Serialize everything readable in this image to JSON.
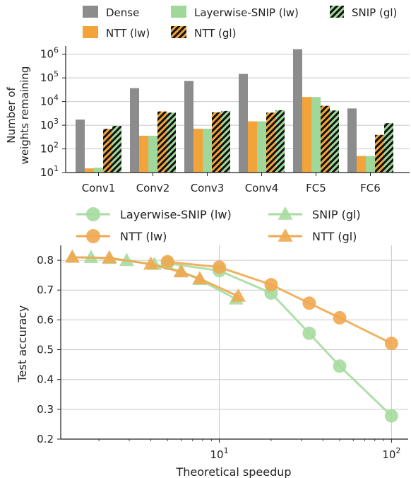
{
  "chart_data": [
    {
      "type": "bar",
      "ylabel_lines": [
        "Number of",
        "weights remaining"
      ],
      "yscale": "log",
      "ylim": [
        10,
        1000000
      ],
      "ytick_exponents": [
        "0",
        "1",
        "2",
        "3",
        "4",
        "5",
        "6"
      ],
      "ytick_base": "10",
      "visible_ytick_exponents": [
        1,
        2,
        3,
        4,
        5,
        6
      ],
      "categories": [
        "Conv1",
        "Conv2",
        "Conv3",
        "Conv4",
        "FC5",
        "FC6"
      ],
      "series": [
        {
          "name": "Dense",
          "color": "#8c8c8c",
          "hatch": false,
          "values": [
            1728,
            36864,
            73728,
            147456,
            1638400,
            5120
          ]
        },
        {
          "name": "NTT (lw)",
          "color": "#f2a43a",
          "hatch": false,
          "values": [
            15,
            360,
            710,
            1460,
            15600,
            50
          ]
        },
        {
          "name": "Layerwise-SNIP (lw)",
          "color": "#9fd89a",
          "hatch": false,
          "values": [
            16,
            360,
            710,
            1460,
            15600,
            50
          ]
        },
        {
          "name": "NTT (gl)",
          "color": "#f2a43a",
          "hatch": true,
          "values": [
            700,
            3800,
            3500,
            3400,
            6600,
            390
          ]
        },
        {
          "name": "SNIP (gl)",
          "color": "#9fd89a",
          "hatch": true,
          "values": [
            940,
            3400,
            4000,
            4300,
            4200,
            1220
          ]
        }
      ],
      "legend": {
        "placement": "top",
        "order": [
          "Dense",
          "Layerwise-SNIP (lw)",
          "SNIP (gl)",
          "NTT (lw)",
          "NTT (gl)"
        ]
      },
      "grid": "y-major"
    },
    {
      "type": "line",
      "xlabel": "Theoretical speedup",
      "ylabel": "Test accuracy",
      "xscale": "log",
      "xlim": [
        1.2,
        125
      ],
      "ylim": [
        0.2,
        0.85
      ],
      "xtick_exponents": [
        "1",
        "2"
      ],
      "xtick_base": "10",
      "yticks": [
        "0.2",
        "0.3",
        "0.4",
        "0.5",
        "0.6",
        "0.7",
        "0.8"
      ],
      "series": [
        {
          "name": "Layerwise-SNIP (lw)",
          "color": "#a6dca0",
          "marker": "circle",
          "x": [
            5,
            10,
            20,
            33.3,
            50,
            100
          ],
          "y": [
            0.79,
            0.765,
            0.69,
            0.555,
            0.445,
            0.278
          ]
        },
        {
          "name": "NTT (lw)",
          "color": "#f0a850",
          "marker": "circle",
          "x": [
            5,
            10,
            20,
            33.3,
            50,
            100
          ],
          "y": [
            0.795,
            0.777,
            0.718,
            0.656,
            0.607,
            0.521
          ]
        },
        {
          "name": "SNIP (gl)",
          "color": "#a6dca0",
          "marker": "triangle",
          "x": [
            1.4,
            1.8,
            2.3,
            2.9,
            4.2,
            6.0,
            7.7,
            12.5
          ],
          "y": [
            0.81,
            0.809,
            0.806,
            0.799,
            0.786,
            0.763,
            0.735,
            0.67
          ]
        },
        {
          "name": "NTT (gl)",
          "color": "#f0a850",
          "marker": "triangle",
          "x": [
            1.4,
            2.3,
            4.0,
            6.0,
            7.7,
            12.9
          ],
          "y": [
            0.81,
            0.808,
            0.787,
            0.761,
            0.738,
            0.679
          ]
        }
      ],
      "legend": {
        "placement": "top",
        "order": [
          "Layerwise-SNIP (lw)",
          "SNIP (gl)",
          "NTT (lw)",
          "NTT (gl)"
        ]
      },
      "grid": "both-major"
    }
  ]
}
